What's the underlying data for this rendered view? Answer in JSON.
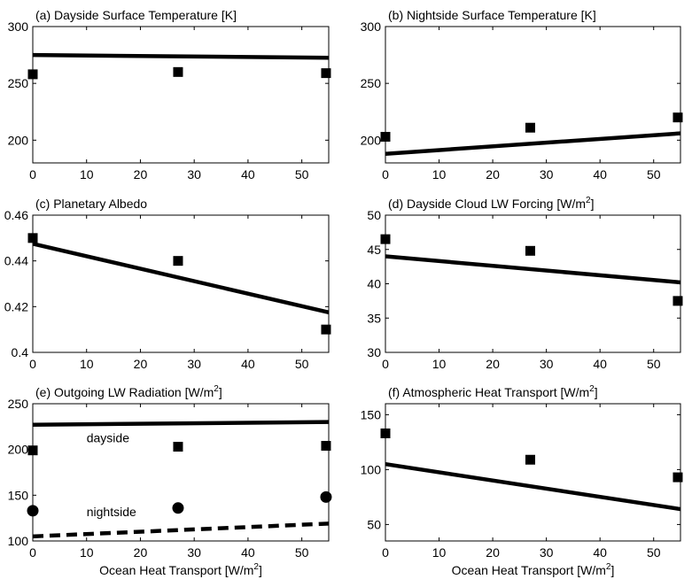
{
  "chart_data": [
    {
      "type": "line",
      "panel": "a",
      "title": "(a) Dayside Surface Temperature [K]",
      "xlabel": "",
      "ylabel": "",
      "xlim": [
        0,
        55
      ],
      "ylim": [
        180,
        300
      ],
      "xticks": [
        0,
        10,
        20,
        30,
        40,
        50
      ],
      "yticks": [
        200,
        250,
        300
      ],
      "series": [
        {
          "name": "model",
          "style": "solid",
          "x": [
            0,
            55
          ],
          "y": [
            275,
            272.5
          ]
        },
        {
          "name": "points",
          "style": "square",
          "x": [
            0,
            27,
            54.5
          ],
          "y": [
            258,
            260,
            259
          ]
        }
      ]
    },
    {
      "type": "line",
      "panel": "b",
      "title": "(b) Nightside Surface Temperature [K]",
      "xlabel": "",
      "ylabel": "",
      "xlim": [
        0,
        55
      ],
      "ylim": [
        180,
        300
      ],
      "xticks": [
        0,
        10,
        20,
        30,
        40,
        50
      ],
      "yticks": [
        200,
        250,
        300
      ],
      "series": [
        {
          "name": "model",
          "style": "solid",
          "x": [
            0,
            55
          ],
          "y": [
            188,
            206
          ]
        },
        {
          "name": "points",
          "style": "square",
          "x": [
            0,
            27,
            54.5
          ],
          "y": [
            203,
            211,
            220
          ]
        }
      ]
    },
    {
      "type": "line",
      "panel": "c",
      "title": "(c) Planetary Albedo",
      "xlabel": "",
      "ylabel": "",
      "xlim": [
        0,
        55
      ],
      "ylim": [
        0.4,
        0.46
      ],
      "xticks": [
        0,
        10,
        20,
        30,
        40,
        50
      ],
      "yticks": [
        0.4,
        0.42,
        0.44,
        0.46
      ],
      "ytick_labels": [
        "0.4",
        "0.42",
        "0.44",
        "0.46"
      ],
      "series": [
        {
          "name": "model",
          "style": "solid",
          "x": [
            0,
            55
          ],
          "y": [
            0.4475,
            0.4175
          ]
        },
        {
          "name": "points",
          "style": "square",
          "x": [
            0,
            27,
            54.5
          ],
          "y": [
            0.45,
            0.44,
            0.41
          ]
        }
      ]
    },
    {
      "type": "line",
      "panel": "d",
      "title": "(d) Dayside Cloud LW Forcing [W/m",
      "title_sup": "2",
      "title_end": "]",
      "xlabel": "",
      "ylabel": "",
      "xlim": [
        0,
        55
      ],
      "ylim": [
        30,
        50
      ],
      "xticks": [
        0,
        10,
        20,
        30,
        40,
        50
      ],
      "yticks": [
        30,
        35,
        40,
        45,
        50
      ],
      "series": [
        {
          "name": "model",
          "style": "solid",
          "x": [
            0,
            55
          ],
          "y": [
            44,
            40.2
          ]
        },
        {
          "name": "points",
          "style": "square",
          "x": [
            0,
            27,
            54.5
          ],
          "y": [
            46.5,
            44.8,
            37.5
          ]
        }
      ]
    },
    {
      "type": "line",
      "panel": "e",
      "title": "(e) Outgoing LW Radiation [W/m",
      "title_sup": "2",
      "title_end": "]",
      "xlabel": "Ocean Heat Transport [W/m",
      "xlabel_sup": "2",
      "xlabel_end": "]",
      "ylabel": "",
      "xlim": [
        0,
        55
      ],
      "ylim": [
        100,
        250
      ],
      "xticks": [
        0,
        10,
        20,
        30,
        40,
        50
      ],
      "yticks": [
        100,
        150,
        200,
        250
      ],
      "annotations": [
        {
          "text": "dayside",
          "x": 10,
          "y": 208
        },
        {
          "text": "nightside",
          "x": 10,
          "y": 127
        }
      ],
      "series": [
        {
          "name": "dayside model",
          "style": "solid",
          "x": [
            0,
            55
          ],
          "y": [
            227,
            230
          ]
        },
        {
          "name": "dayside points",
          "style": "square",
          "x": [
            0,
            27,
            54.5
          ],
          "y": [
            199,
            203,
            204
          ]
        },
        {
          "name": "nightside model",
          "style": "dashed",
          "x": [
            0,
            55
          ],
          "y": [
            105,
            119
          ]
        },
        {
          "name": "nightside points",
          "style": "circle",
          "x": [
            0,
            27,
            54.5
          ],
          "y": [
            133,
            136,
            148
          ]
        }
      ]
    },
    {
      "type": "line",
      "panel": "f",
      "title": "(f) Atmospheric Heat Transport [W/m",
      "title_sup": "2",
      "title_end": "]",
      "xlabel": "Ocean Heat Transport [W/m",
      "xlabel_sup": "2",
      "xlabel_end": "]",
      "ylabel": "",
      "xlim": [
        0,
        55
      ],
      "ylim": [
        35,
        160
      ],
      "xticks": [
        0,
        10,
        20,
        30,
        40,
        50
      ],
      "yticks": [
        50,
        100,
        150
      ],
      "series": [
        {
          "name": "model",
          "style": "solid",
          "x": [
            0,
            55
          ],
          "y": [
            105,
            64
          ]
        },
        {
          "name": "points",
          "style": "square",
          "x": [
            0,
            27,
            54.5
          ],
          "y": [
            133,
            109,
            93
          ]
        }
      ]
    }
  ]
}
